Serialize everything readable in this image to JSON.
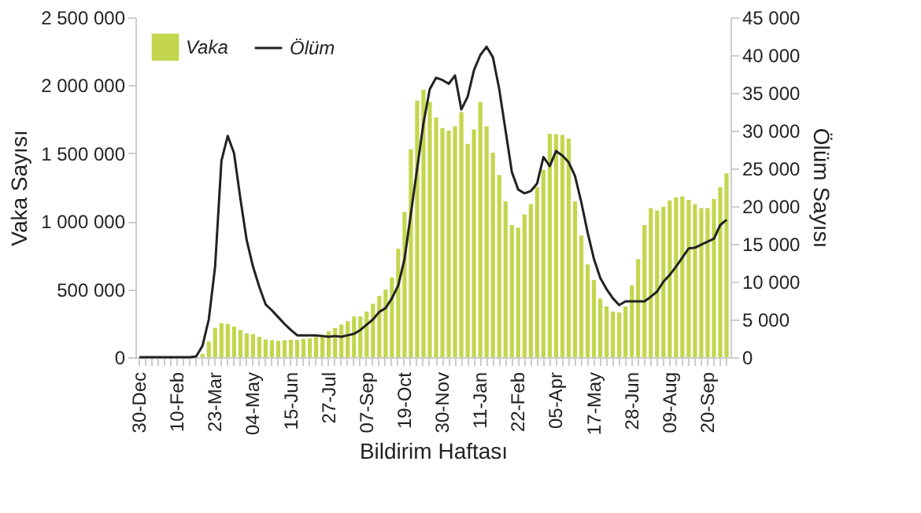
{
  "chart_data": {
    "type": "bar",
    "categories": [
      "30-Dec",
      null,
      null,
      null,
      null,
      null,
      "10-Feb",
      null,
      null,
      null,
      null,
      null,
      "23-Mar",
      null,
      null,
      null,
      null,
      null,
      "04-May",
      null,
      null,
      null,
      null,
      null,
      "15-Jun",
      null,
      null,
      null,
      null,
      null,
      "27-Jul",
      null,
      null,
      null,
      null,
      null,
      "07-Sep",
      null,
      null,
      null,
      null,
      null,
      "19-Oct",
      null,
      null,
      null,
      null,
      null,
      "30-Nov",
      null,
      null,
      null,
      null,
      null,
      "11-Jan",
      null,
      null,
      null,
      null,
      null,
      "22-Feb",
      null,
      null,
      null,
      null,
      null,
      "05-Apr",
      null,
      null,
      null,
      null,
      null,
      "17-May",
      null,
      null,
      null,
      null,
      null,
      "28-Jun",
      null,
      null,
      null,
      null,
      null,
      "09-Aug",
      null,
      null,
      null,
      null,
      null,
      "20-Sep",
      null,
      null,
      null
    ],
    "series": [
      {
        "name": "Vaka",
        "color": "#c3d64e",
        "values": [
          0,
          0,
          0,
          0,
          0,
          0,
          0,
          0,
          0,
          0,
          25000,
          115000,
          215000,
          250000,
          245000,
          225000,
          200000,
          175000,
          170000,
          150000,
          130000,
          125000,
          120000,
          125000,
          128000,
          128000,
          135000,
          140000,
          150000,
          165000,
          190000,
          215000,
          240000,
          265000,
          300000,
          300000,
          336000,
          394000,
          451000,
          498000,
          587000,
          799000,
          1068000,
          1531000,
          1887000,
          1968000,
          1878000,
          1763000,
          1686000,
          1667000,
          1698000,
          1802000,
          1570000,
          1675000,
          1878000,
          1698000,
          1505000,
          1339000,
          1146000,
          972000,
          953000,
          1050000,
          1126000,
          1250000,
          1377000,
          1644000,
          1640000,
          1635000,
          1609000,
          1146000,
          895000,
          683000,
          567000,
          432000,
          374000,
          336000,
          329000,
          374000,
          529000,
          721000,
          972000,
          1096000,
          1080000,
          1107000,
          1153000,
          1176000,
          1184000,
          1157000,
          1126000,
          1096000,
          1096000,
          1165000,
          1250000,
          1351000
        ]
      },
      {
        "name": "Ölüm",
        "type": "line",
        "axis": "y2",
        "color": "#222222",
        "values": [
          0,
          0,
          0,
          0,
          0,
          0,
          0,
          0,
          0,
          100,
          1500,
          5000,
          12000,
          26000,
          29300,
          27000,
          21000,
          15500,
          12000,
          9300,
          7000,
          6200,
          5300,
          4400,
          3600,
          2900,
          2900,
          2900,
          2900,
          2800,
          2700,
          2800,
          2700,
          2900,
          3100,
          3600,
          4300,
          5000,
          6000,
          6500,
          7800,
          9500,
          13000,
          19000,
          25000,
          31000,
          35500,
          37000,
          36700,
          36200,
          37300,
          32800,
          34500,
          38000,
          40000,
          41100,
          39700,
          35500,
          30000,
          24500,
          22200,
          21700,
          22000,
          23000,
          26500,
          25300,
          27300,
          26700,
          25800,
          24000,
          20500,
          16500,
          13000,
          10500,
          9000,
          7800,
          6900,
          7400,
          7400,
          7400,
          7400,
          8000,
          8700,
          10000,
          10900,
          12000,
          13200,
          14400,
          14500,
          14900,
          15300,
          15700,
          17500,
          18200
        ]
      }
    ],
    "xlabel": "Bildirim Haftası",
    "ylabel": "Vaka Sayısı",
    "y2label": "Ölüm Sayısı",
    "ylim": [
      0,
      2500000
    ],
    "yticks": [
      0,
      {
        "value": 500000,
        "label": "500 000"
      },
      {
        "value": 1000000,
        "label": "1 000 000"
      },
      {
        "value": 1500000,
        "label": "1 500 000"
      },
      {
        "value": 2000000,
        "label": "2 000 000"
      },
      {
        "value": 2500000,
        "label": "2 500 000"
      }
    ],
    "y2lim": [
      0,
      45000
    ],
    "y2ticks": [
      0,
      {
        "value": 5000,
        "label": "5 000"
      },
      {
        "value": 10000,
        "label": "10 000"
      },
      {
        "value": 15000,
        "label": "15 000"
      },
      {
        "value": 20000,
        "label": "20 000"
      },
      {
        "value": 25000,
        "label": "25 000"
      },
      {
        "value": 30000,
        "label": "30 000"
      },
      {
        "value": 35000,
        "label": "35 000"
      },
      {
        "value": 40000,
        "label": "40 000"
      },
      {
        "value": 45000,
        "label": "45 000"
      }
    ],
    "legend": "top left"
  }
}
